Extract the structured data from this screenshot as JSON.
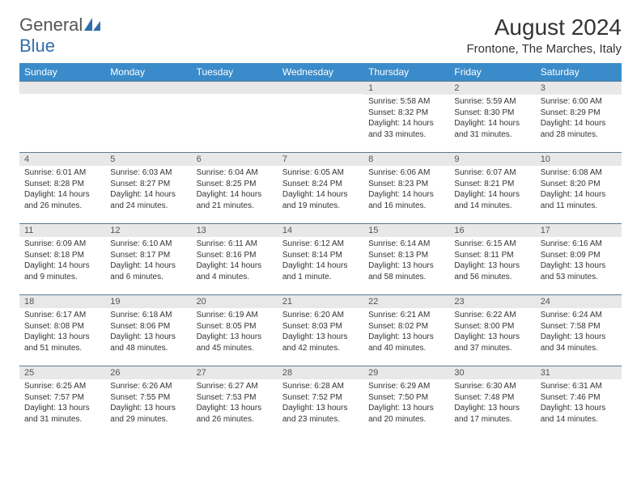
{
  "logo": {
    "textA": "General",
    "textB": "Blue"
  },
  "title": "August 2024",
  "location": "Frontone, The Marches, Italy",
  "colors": {
    "header_bg": "#3a8bc9",
    "header_text": "#ffffff",
    "daynum_bg": "#e8e8e8",
    "rule": "#5a7a94"
  },
  "dayNames": [
    "Sunday",
    "Monday",
    "Tuesday",
    "Wednesday",
    "Thursday",
    "Friday",
    "Saturday"
  ],
  "weeks": [
    [
      {
        "n": "",
        "lines": []
      },
      {
        "n": "",
        "lines": []
      },
      {
        "n": "",
        "lines": []
      },
      {
        "n": "",
        "lines": []
      },
      {
        "n": "1",
        "lines": [
          "Sunrise: 5:58 AM",
          "Sunset: 8:32 PM",
          "Daylight: 14 hours and 33 minutes."
        ]
      },
      {
        "n": "2",
        "lines": [
          "Sunrise: 5:59 AM",
          "Sunset: 8:30 PM",
          "Daylight: 14 hours and 31 minutes."
        ]
      },
      {
        "n": "3",
        "lines": [
          "Sunrise: 6:00 AM",
          "Sunset: 8:29 PM",
          "Daylight: 14 hours and 28 minutes."
        ]
      }
    ],
    [
      {
        "n": "4",
        "lines": [
          "Sunrise: 6:01 AM",
          "Sunset: 8:28 PM",
          "Daylight: 14 hours and 26 minutes."
        ]
      },
      {
        "n": "5",
        "lines": [
          "Sunrise: 6:03 AM",
          "Sunset: 8:27 PM",
          "Daylight: 14 hours and 24 minutes."
        ]
      },
      {
        "n": "6",
        "lines": [
          "Sunrise: 6:04 AM",
          "Sunset: 8:25 PM",
          "Daylight: 14 hours and 21 minutes."
        ]
      },
      {
        "n": "7",
        "lines": [
          "Sunrise: 6:05 AM",
          "Sunset: 8:24 PM",
          "Daylight: 14 hours and 19 minutes."
        ]
      },
      {
        "n": "8",
        "lines": [
          "Sunrise: 6:06 AM",
          "Sunset: 8:23 PM",
          "Daylight: 14 hours and 16 minutes."
        ]
      },
      {
        "n": "9",
        "lines": [
          "Sunrise: 6:07 AM",
          "Sunset: 8:21 PM",
          "Daylight: 14 hours and 14 minutes."
        ]
      },
      {
        "n": "10",
        "lines": [
          "Sunrise: 6:08 AM",
          "Sunset: 8:20 PM",
          "Daylight: 14 hours and 11 minutes."
        ]
      }
    ],
    [
      {
        "n": "11",
        "lines": [
          "Sunrise: 6:09 AM",
          "Sunset: 8:18 PM",
          "Daylight: 14 hours and 9 minutes."
        ]
      },
      {
        "n": "12",
        "lines": [
          "Sunrise: 6:10 AM",
          "Sunset: 8:17 PM",
          "Daylight: 14 hours and 6 minutes."
        ]
      },
      {
        "n": "13",
        "lines": [
          "Sunrise: 6:11 AM",
          "Sunset: 8:16 PM",
          "Daylight: 14 hours and 4 minutes."
        ]
      },
      {
        "n": "14",
        "lines": [
          "Sunrise: 6:12 AM",
          "Sunset: 8:14 PM",
          "Daylight: 14 hours and 1 minute."
        ]
      },
      {
        "n": "15",
        "lines": [
          "Sunrise: 6:14 AM",
          "Sunset: 8:13 PM",
          "Daylight: 13 hours and 58 minutes."
        ]
      },
      {
        "n": "16",
        "lines": [
          "Sunrise: 6:15 AM",
          "Sunset: 8:11 PM",
          "Daylight: 13 hours and 56 minutes."
        ]
      },
      {
        "n": "17",
        "lines": [
          "Sunrise: 6:16 AM",
          "Sunset: 8:09 PM",
          "Daylight: 13 hours and 53 minutes."
        ]
      }
    ],
    [
      {
        "n": "18",
        "lines": [
          "Sunrise: 6:17 AM",
          "Sunset: 8:08 PM",
          "Daylight: 13 hours and 51 minutes."
        ]
      },
      {
        "n": "19",
        "lines": [
          "Sunrise: 6:18 AM",
          "Sunset: 8:06 PM",
          "Daylight: 13 hours and 48 minutes."
        ]
      },
      {
        "n": "20",
        "lines": [
          "Sunrise: 6:19 AM",
          "Sunset: 8:05 PM",
          "Daylight: 13 hours and 45 minutes."
        ]
      },
      {
        "n": "21",
        "lines": [
          "Sunrise: 6:20 AM",
          "Sunset: 8:03 PM",
          "Daylight: 13 hours and 42 minutes."
        ]
      },
      {
        "n": "22",
        "lines": [
          "Sunrise: 6:21 AM",
          "Sunset: 8:02 PM",
          "Daylight: 13 hours and 40 minutes."
        ]
      },
      {
        "n": "23",
        "lines": [
          "Sunrise: 6:22 AM",
          "Sunset: 8:00 PM",
          "Daylight: 13 hours and 37 minutes."
        ]
      },
      {
        "n": "24",
        "lines": [
          "Sunrise: 6:24 AM",
          "Sunset: 7:58 PM",
          "Daylight: 13 hours and 34 minutes."
        ]
      }
    ],
    [
      {
        "n": "25",
        "lines": [
          "Sunrise: 6:25 AM",
          "Sunset: 7:57 PM",
          "Daylight: 13 hours and 31 minutes."
        ]
      },
      {
        "n": "26",
        "lines": [
          "Sunrise: 6:26 AM",
          "Sunset: 7:55 PM",
          "Daylight: 13 hours and 29 minutes."
        ]
      },
      {
        "n": "27",
        "lines": [
          "Sunrise: 6:27 AM",
          "Sunset: 7:53 PM",
          "Daylight: 13 hours and 26 minutes."
        ]
      },
      {
        "n": "28",
        "lines": [
          "Sunrise: 6:28 AM",
          "Sunset: 7:52 PM",
          "Daylight: 13 hours and 23 minutes."
        ]
      },
      {
        "n": "29",
        "lines": [
          "Sunrise: 6:29 AM",
          "Sunset: 7:50 PM",
          "Daylight: 13 hours and 20 minutes."
        ]
      },
      {
        "n": "30",
        "lines": [
          "Sunrise: 6:30 AM",
          "Sunset: 7:48 PM",
          "Daylight: 13 hours and 17 minutes."
        ]
      },
      {
        "n": "31",
        "lines": [
          "Sunrise: 6:31 AM",
          "Sunset: 7:46 PM",
          "Daylight: 13 hours and 14 minutes."
        ]
      }
    ]
  ]
}
